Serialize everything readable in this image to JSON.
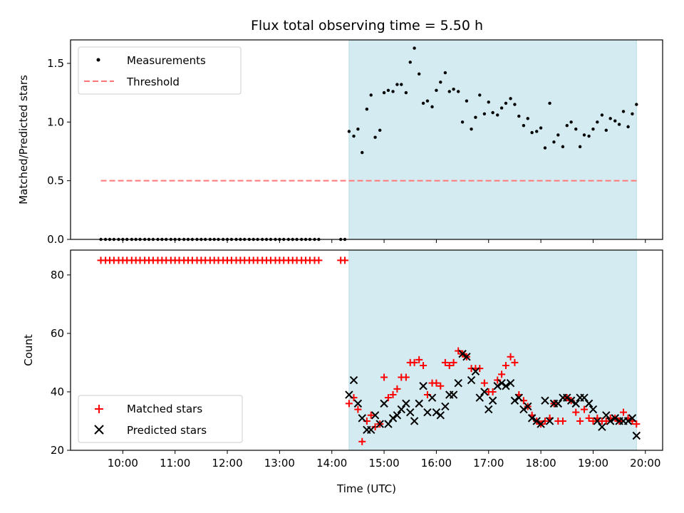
{
  "chart_data": [
    {
      "type": "scatter",
      "title": "Flux total observing time = 5.50 h",
      "xlabel": "",
      "ylabel": "Matched/Predicted stars",
      "ylim": [
        0,
        1.7
      ],
      "yticks": [
        "0.0",
        "0.5",
        "1.0",
        "1.5"
      ],
      "ytick_values": [
        0,
        0.5,
        1.0,
        1.5
      ],
      "shaded_region_hours": [
        14.33,
        19.83
      ],
      "shade_color": "#d3ebf1",
      "threshold": {
        "name": "Threshold",
        "value": 0.5,
        "from_hour": 9.58,
        "to_hour": 19.83,
        "color": "#ff7777"
      },
      "legend_position": "top-left",
      "series": [
        {
          "name": "Measurements",
          "color": "#000000",
          "x": [
            9.58,
            9.67,
            9.75,
            9.83,
            9.92,
            10.0,
            10.08,
            10.17,
            10.25,
            10.33,
            10.42,
            10.5,
            10.58,
            10.67,
            10.75,
            10.83,
            10.92,
            11.0,
            11.08,
            11.17,
            11.25,
            11.33,
            11.42,
            11.5,
            11.58,
            11.67,
            11.75,
            11.83,
            11.92,
            12.0,
            12.08,
            12.17,
            12.25,
            12.33,
            12.42,
            12.5,
            12.58,
            12.67,
            12.75,
            12.83,
            12.92,
            13.0,
            13.08,
            13.17,
            13.25,
            13.33,
            13.42,
            13.5,
            13.58,
            13.67,
            13.75,
            14.17,
            14.25,
            14.33,
            14.42,
            14.5,
            14.58,
            14.67,
            14.75,
            14.83,
            14.92,
            15.0,
            15.08,
            15.17,
            15.25,
            15.33,
            15.42,
            15.5,
            15.58,
            15.67,
            15.75,
            15.83,
            15.92,
            16.0,
            16.08,
            16.17,
            16.25,
            16.33,
            16.42,
            16.5,
            16.58,
            16.67,
            16.75,
            16.83,
            16.92,
            17.0,
            17.08,
            17.17,
            17.25,
            17.33,
            17.42,
            17.5,
            17.58,
            17.67,
            17.75,
            17.83,
            17.92,
            18.0,
            18.08,
            18.17,
            18.25,
            18.33,
            18.42,
            18.5,
            18.58,
            18.67,
            18.75,
            18.83,
            18.92,
            19.0,
            19.08,
            19.17,
            19.25,
            19.33,
            19.42,
            19.5,
            19.58,
            19.67,
            19.75,
            19.83
          ],
          "y": [
            0,
            0,
            0,
            0,
            0,
            0,
            0,
            0,
            0,
            0,
            0,
            0,
            0,
            0,
            0,
            0,
            0,
            0,
            0,
            0,
            0,
            0,
            0,
            0,
            0,
            0,
            0,
            0,
            0,
            0,
            0,
            0,
            0,
            0,
            0,
            0,
            0,
            0,
            0,
            0,
            0,
            0,
            0,
            0,
            0,
            0,
            0,
            0,
            0,
            0,
            0,
            0,
            0,
            0.92,
            0.88,
            0.94,
            0.74,
            1.11,
            1.23,
            0.87,
            0.93,
            1.25,
            1.27,
            1.26,
            1.32,
            1.32,
            1.25,
            1.51,
            1.63,
            1.41,
            1.16,
            1.18,
            1.13,
            1.27,
            1.34,
            1.42,
            1.26,
            1.28,
            1.26,
            1.0,
            1.18,
            0.94,
            1.04,
            1.23,
            1.07,
            1.17,
            1.08,
            1.06,
            1.12,
            1.16,
            1.2,
            1.15,
            1.05,
            0.97,
            1.03,
            0.91,
            0.92,
            0.95,
            0.78,
            1.16,
            0.83,
            0.89,
            0.79,
            0.97,
            1.0,
            0.94,
            0.79,
            0.89,
            0.88,
            0.94,
            1.0,
            1.06,
            0.93,
            1.03,
            1.01,
            0.98,
            1.09,
            0.96,
            1.07,
            1.15
          ]
        }
      ]
    },
    {
      "type": "scatter",
      "title": "",
      "xlabel": "Time (UTC)",
      "ylabel": "Count",
      "ylim": [
        20,
        88.5
      ],
      "yticks": [
        "20",
        "40",
        "60",
        "80"
      ],
      "ytick_values": [
        20,
        40,
        60,
        80
      ],
      "xticks": [
        "10:00",
        "11:00",
        "12:00",
        "13:00",
        "14:00",
        "15:00",
        "16:00",
        "17:00",
        "18:00",
        "19:00",
        "20:00"
      ],
      "xtick_values": [
        10,
        11,
        12,
        13,
        14,
        15,
        16,
        17,
        18,
        19,
        20
      ],
      "xlim_hours": [
        9.0,
        20.33
      ],
      "legend_position": "bottom-left",
      "series": [
        {
          "name": "Matched stars",
          "marker": "plus",
          "color": "#ff0000",
          "x": [
            9.58,
            9.67,
            9.75,
            9.83,
            9.92,
            10.0,
            10.08,
            10.17,
            10.25,
            10.33,
            10.42,
            10.5,
            10.58,
            10.67,
            10.75,
            10.83,
            10.92,
            11.0,
            11.08,
            11.17,
            11.25,
            11.33,
            11.42,
            11.5,
            11.58,
            11.67,
            11.75,
            11.83,
            11.92,
            12.0,
            12.08,
            12.17,
            12.25,
            12.33,
            12.42,
            12.5,
            12.58,
            12.67,
            12.75,
            12.83,
            12.92,
            13.0,
            13.08,
            13.17,
            13.25,
            13.33,
            13.42,
            13.5,
            13.58,
            13.67,
            13.75,
            14.17,
            14.25,
            14.33,
            14.42,
            14.5,
            14.58,
            14.67,
            14.75,
            14.83,
            14.92,
            15.0,
            15.08,
            15.17,
            15.25,
            15.33,
            15.42,
            15.5,
            15.58,
            15.67,
            15.75,
            15.83,
            15.92,
            16.0,
            16.08,
            16.17,
            16.25,
            16.33,
            16.42,
            16.5,
            16.58,
            16.67,
            16.75,
            16.83,
            16.92,
            17.0,
            17.08,
            17.17,
            17.25,
            17.33,
            17.42,
            17.5,
            17.58,
            17.67,
            17.75,
            17.83,
            17.92,
            18.0,
            18.08,
            18.17,
            18.25,
            18.33,
            18.42,
            18.5,
            18.58,
            18.67,
            18.75,
            18.83,
            18.92,
            19.0,
            19.08,
            19.17,
            19.25,
            19.33,
            19.42,
            19.5,
            19.58,
            19.67,
            19.75,
            19.83
          ],
          "y": [
            85,
            85,
            85,
            85,
            85,
            85,
            85,
            85,
            85,
            85,
            85,
            85,
            85,
            85,
            85,
            85,
            85,
            85,
            85,
            85,
            85,
            85,
            85,
            85,
            85,
            85,
            85,
            85,
            85,
            85,
            85,
            85,
            85,
            85,
            85,
            85,
            85,
            85,
            85,
            85,
            85,
            85,
            85,
            85,
            85,
            85,
            85,
            85,
            85,
            85,
            85,
            85,
            85,
            36,
            38,
            34,
            23,
            30,
            32,
            28,
            29,
            45,
            38,
            39,
            41,
            45,
            45,
            50,
            50,
            51,
            49,
            39,
            43,
            43,
            42,
            50,
            49,
            50,
            54,
            53,
            52,
            48,
            48,
            48,
            43,
            40,
            40,
            44,
            46,
            49,
            52,
            50,
            39,
            37,
            35,
            32,
            30,
            29,
            30,
            31,
            36,
            30,
            30,
            38,
            37,
            33,
            30,
            34,
            31,
            30,
            31,
            30,
            30,
            31,
            31,
            30,
            33,
            31,
            30,
            29
          ]
        },
        {
          "name": "Predicted stars",
          "marker": "x",
          "color": "#000000",
          "x": [
            14.33,
            14.42,
            14.5,
            14.58,
            14.67,
            14.75,
            14.83,
            14.92,
            15.0,
            15.08,
            15.17,
            15.25,
            15.33,
            15.42,
            15.5,
            15.58,
            15.67,
            15.75,
            15.83,
            15.92,
            16.0,
            16.08,
            16.17,
            16.25,
            16.33,
            16.42,
            16.5,
            16.58,
            16.67,
            16.75,
            16.83,
            16.92,
            17.0,
            17.08,
            17.17,
            17.25,
            17.33,
            17.42,
            17.5,
            17.58,
            17.67,
            17.75,
            17.83,
            17.92,
            18.0,
            18.08,
            18.17,
            18.25,
            18.33,
            18.42,
            18.5,
            18.58,
            18.67,
            18.75,
            18.83,
            18.92,
            19.0,
            19.08,
            19.17,
            19.25,
            19.33,
            19.42,
            19.5,
            19.58,
            19.67,
            19.75,
            19.83
          ],
          "y": [
            39,
            44,
            36,
            31,
            27,
            27,
            32,
            29,
            36,
            29,
            31,
            32,
            34,
            36,
            33,
            30,
            36,
            42,
            33,
            38,
            33,
            32,
            35,
            39,
            39,
            43,
            53,
            52,
            44,
            47,
            38,
            40,
            34,
            37,
            42,
            43,
            42,
            43,
            37,
            38,
            34,
            35,
            31,
            30,
            29,
            37,
            30,
            36,
            36,
            38,
            38,
            37,
            36,
            38,
            38,
            36,
            34,
            30,
            28,
            32,
            30,
            31,
            30,
            30,
            30,
            31,
            25
          ]
        }
      ]
    }
  ]
}
